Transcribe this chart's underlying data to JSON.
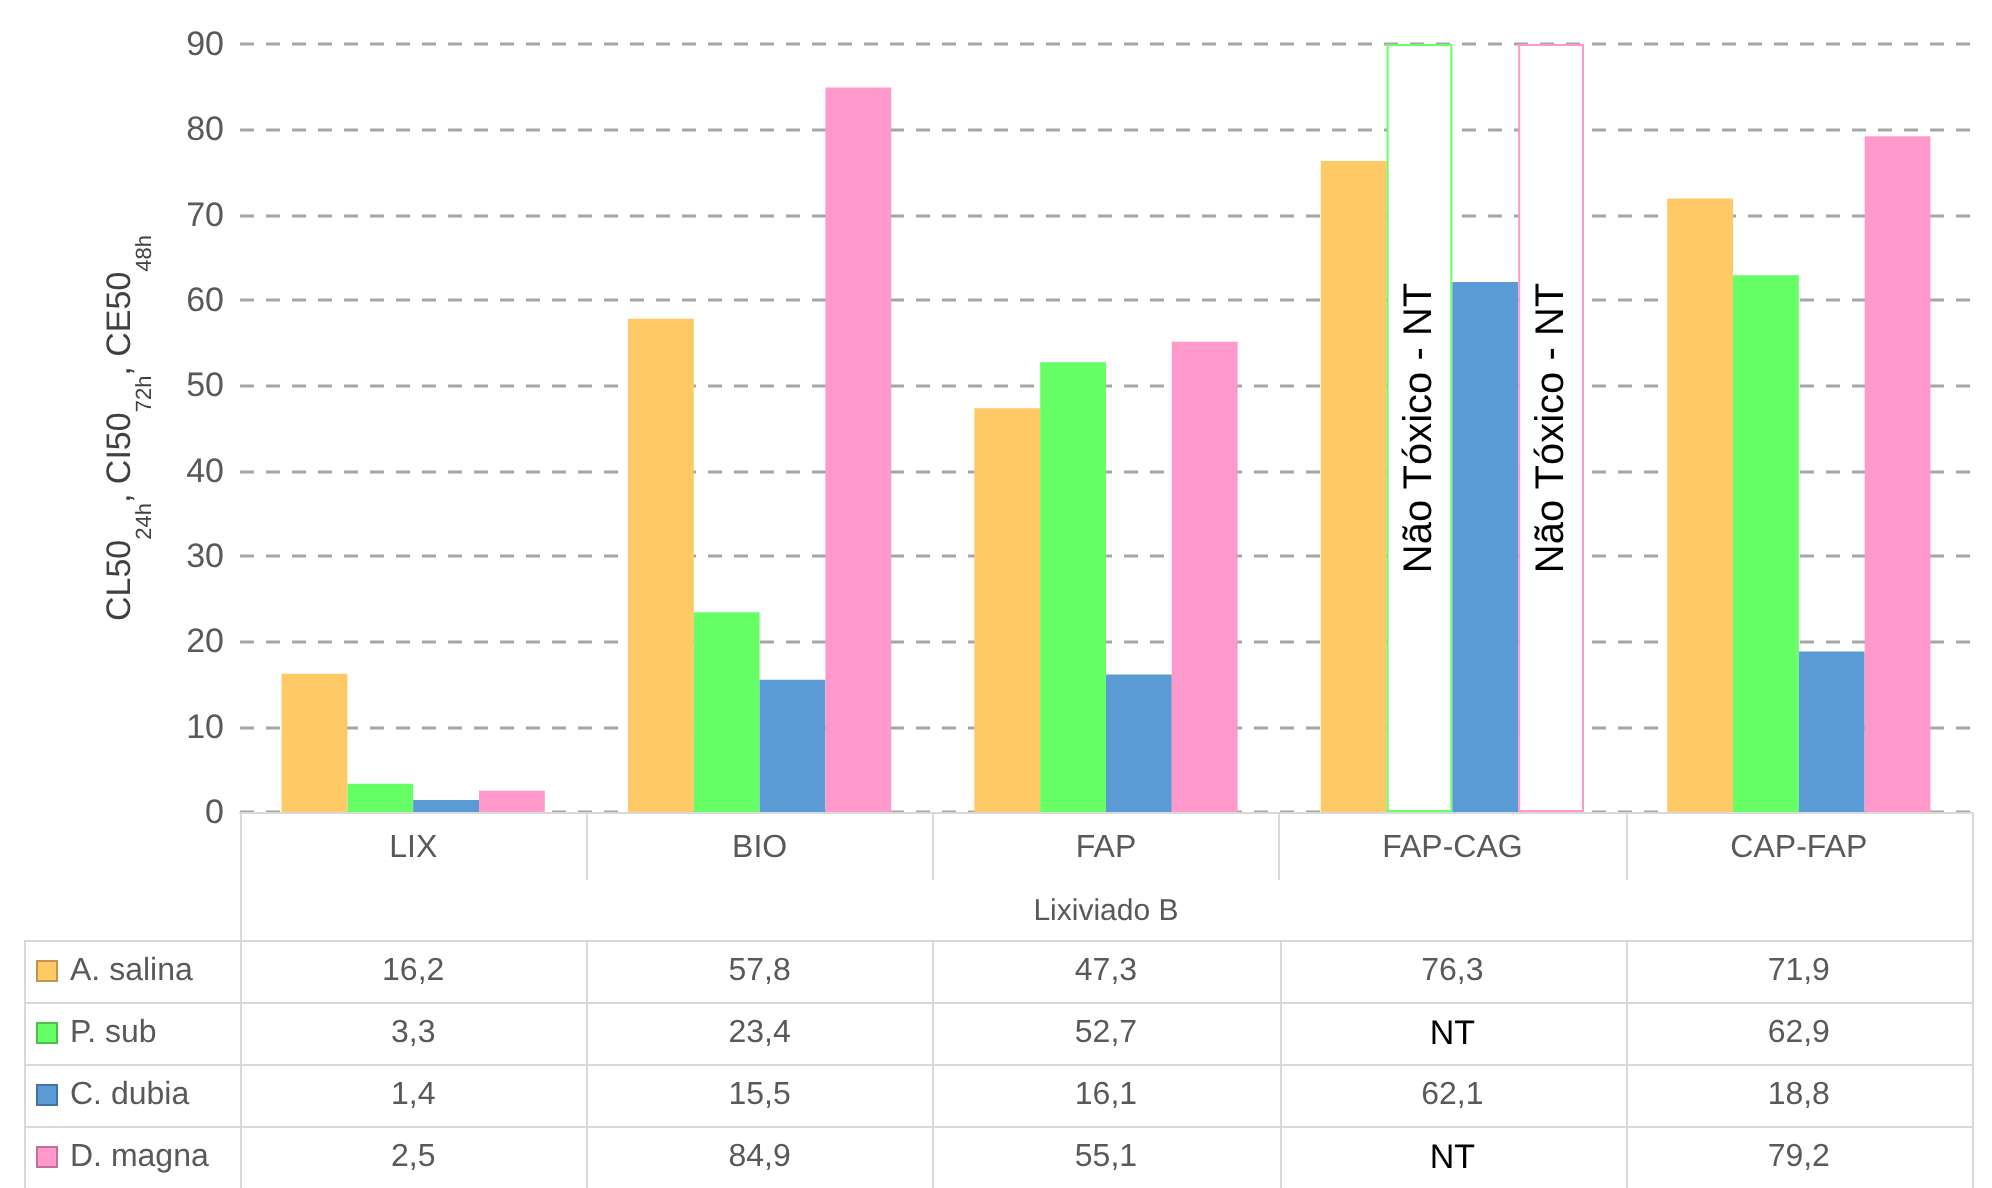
{
  "chart_data": {
    "type": "bar",
    "ylabel": "CL50$_{24h}$, CI50$_{72h}$, CE50$_{48h}$",
    "xlabel": "Lixiviado B",
    "categories": [
      "LIX",
      "BIO",
      "FAP",
      "FAP-CAG",
      "CAP-FAP"
    ],
    "series": [
      {
        "name": "A. salina",
        "color": "#ffc966",
        "values": [
          16.2,
          57.8,
          47.3,
          76.3,
          71.9
        ],
        "value_labels": [
          "16,2",
          "57,8",
          "47,3",
          "76,3",
          "71,9"
        ]
      },
      {
        "name": "P. sub",
        "color": "#66ff66",
        "colors": [
          "#66ff66",
          "#66ff66",
          "#66ff66",
          "#ffffff",
          "#66ff66"
        ],
        "values": [
          3.3,
          23.4,
          52.7,
          90,
          62.9
        ],
        "value_labels": [
          "3,3",
          "23,4",
          "52,7",
          "NT",
          "62,9"
        ]
      },
      {
        "name": "C. dubia",
        "color": "#5b9bd5",
        "values": [
          1.4,
          15.5,
          16.1,
          62.1,
          18.8
        ],
        "value_labels": [
          "1,4",
          "15,5",
          "16,1",
          "62,1",
          "18,8"
        ]
      },
      {
        "name": "D. magna",
        "color": "#ff99cc",
        "colors": [
          "#ff99cc",
          "#ff99cc",
          "#ff99cc",
          "#ffffff",
          "#ff99cc"
        ],
        "values": [
          2.5,
          84.9,
          55.1,
          90,
          79.2
        ],
        "value_labels": [
          "2,5",
          "84,9",
          "55,1",
          "NT",
          "79,2"
        ]
      }
    ],
    "annotations": [
      "Não Tóxico - NT",
      "Não Tóxico - NT"
    ],
    "ylim": [
      0,
      90
    ],
    "yticks": [
      0,
      10,
      20,
      30,
      40,
      50,
      60,
      70,
      80,
      90
    ],
    "grid": "y",
    "legend": "bottom"
  }
}
